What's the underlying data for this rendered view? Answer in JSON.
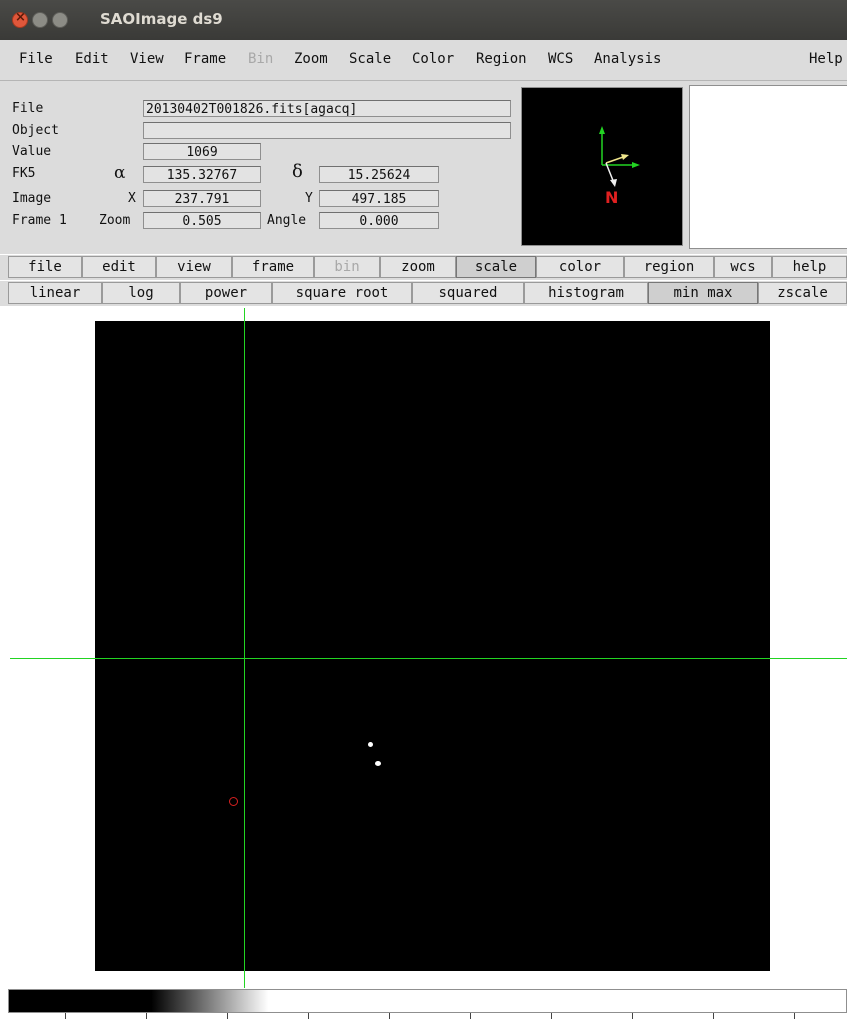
{
  "window": {
    "title": "SAOImage ds9"
  },
  "menubar": {
    "file": "File",
    "edit": "Edit",
    "view": "View",
    "frame": "Frame",
    "bin": "Bin",
    "zoom": "Zoom",
    "scale": "Scale",
    "color": "Color",
    "region": "Region",
    "wcs": "WCS",
    "analysis": "Analysis",
    "help": "Help"
  },
  "info": {
    "file_label": "File",
    "file_value": "20130402T001826.fits[agacq]",
    "object_label": "Object",
    "object_value": "",
    "value_label": "Value",
    "value_value": "1069",
    "fk5_label": "FK5",
    "alpha_symbol": "α",
    "alpha_value": "135.32767",
    "delta_symbol": "δ",
    "delta_value": "15.25624",
    "image_label": "Image",
    "x_label": "X",
    "x_value": "237.791",
    "y_label": "Y",
    "y_value": "497.185",
    "frame_label": "Frame 1",
    "zoom_label": "Zoom",
    "zoom_value": "0.505",
    "angle_label": "Angle",
    "angle_value": "0.000",
    "compass_north": "N"
  },
  "buttonbar": [
    "file",
    "edit",
    "view",
    "frame",
    "bin",
    "zoom",
    "scale",
    "color",
    "region",
    "wcs",
    "help"
  ],
  "scalebar": [
    "linear",
    "log",
    "power",
    "square root",
    "squared",
    "histogram",
    "min max",
    "zscale"
  ],
  "colors": {
    "crosshair": "#22d422",
    "region": "#d62020",
    "compass_north": "#e02020"
  }
}
